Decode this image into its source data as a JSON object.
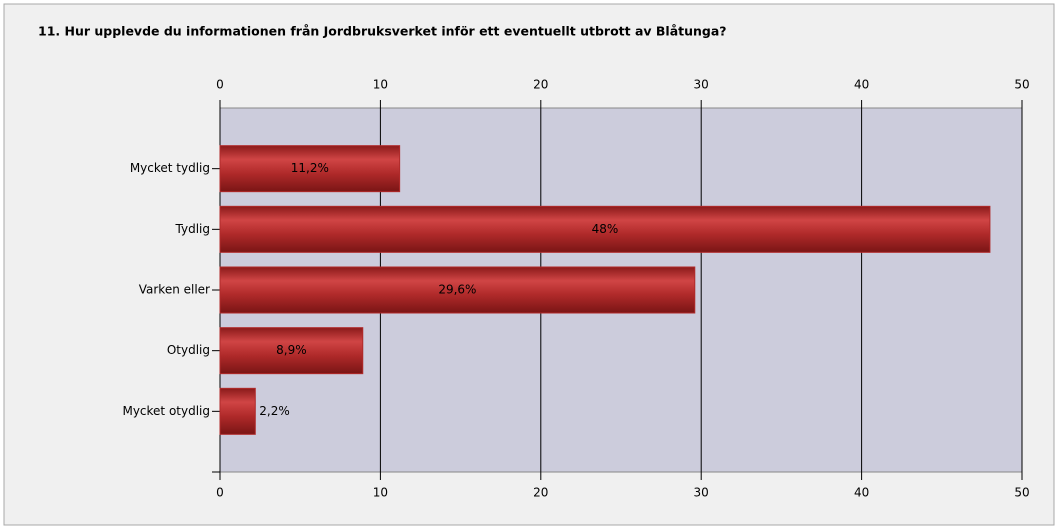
{
  "chart_data": {
    "type": "bar",
    "orientation": "horizontal",
    "title": "11. Hur upplevde du informationen från Jordbruksverket inför ett eventuellt utbrott av Blåtunga?",
    "categories": [
      "Mycket tydlig",
      "Tydlig",
      "Varken eller",
      "Otydlig",
      "Mycket otydlig"
    ],
    "values": [
      11.2,
      48,
      29.6,
      8.9,
      2.2
    ],
    "value_labels": [
      "11,2%",
      "48%",
      "29,6%",
      "8,9%",
      "2,2%"
    ],
    "color": "#b02a2a",
    "xlim": [
      0,
      50
    ],
    "xticks": [
      0,
      10,
      20,
      30,
      40,
      50
    ],
    "grid": true
  }
}
